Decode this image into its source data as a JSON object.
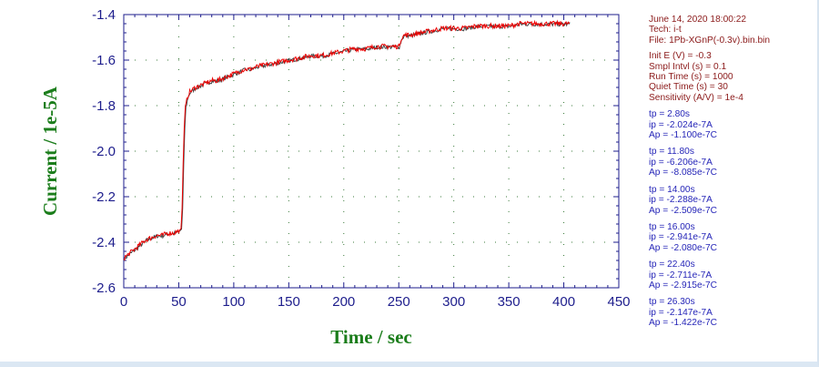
{
  "info": {
    "date_time": "June 14, 2020   18:00:22",
    "tech": "Tech: i-t",
    "file": "File: 1Pb-XGnP(-0.3v).bin.bin",
    "params": [
      "Init E (V) = -0.3",
      "Smpl Intvl (s) = 0.1",
      "Run Time (s) = 1000",
      "Quiet Time (s) = 30",
      "Sensitivity (A/V) = 1e-4"
    ],
    "peaks": [
      {
        "tp": "tp = 2.80s",
        "ip": "ip = -2.024e-7A",
        "ap": "Ap = -1.100e-7C"
      },
      {
        "tp": "tp = 11.80s",
        "ip": "ip = -6.206e-7A",
        "ap": "Ap = -8.085e-7C"
      },
      {
        "tp": "tp = 14.00s",
        "ip": "ip = -2.288e-7A",
        "ap": "Ap = -2.509e-7C"
      },
      {
        "tp": "tp = 16.00s",
        "ip": "ip = -2.941e-7A",
        "ap": "Ap = -2.080e-7C"
      },
      {
        "tp": "tp = 22.40s",
        "ip": "ip = -2.711e-7A",
        "ap": "Ap = -2.915e-7C"
      },
      {
        "tp": "tp = 26.30s",
        "ip": "ip = -2.147e-7A",
        "ap": "Ap = -1.422e-7C"
      }
    ]
  },
  "colors": {
    "trace": "#ee0000",
    "trace_shadow": "#444444",
    "axis": "#1d1d8c",
    "axis_title": "#1b7d1b",
    "grid_dots": "#3a7a3a"
  },
  "chart_data": {
    "type": "line",
    "xlabel": "Time / sec",
    "ylabel": "Current / 1e-5A",
    "xlim": [
      0,
      450
    ],
    "ylim": [
      -2.6,
      -1.4
    ],
    "xticks": [
      "0",
      "50",
      "100",
      "150",
      "200",
      "250",
      "300",
      "350",
      "400",
      "450"
    ],
    "yticks": [
      "-1.4",
      "-1.6",
      "-1.8",
      "-2.0",
      "-2.2",
      "-2.4",
      "-2.6"
    ],
    "grid": "dotted",
    "series": [
      {
        "x": [
          0,
          5,
          10,
          15,
          20,
          25,
          30,
          35,
          40,
          45,
          50,
          52,
          53,
          54,
          55,
          56,
          58,
          60,
          65,
          70,
          75,
          80,
          85,
          90,
          95,
          100,
          105,
          110,
          115,
          120,
          130,
          140,
          150,
          160,
          170,
          180,
          190,
          200,
          210,
          220,
          230,
          240,
          250,
          252,
          253,
          255,
          260,
          270,
          280,
          290,
          300,
          310,
          320,
          330,
          340,
          350,
          360,
          370,
          380,
          390,
          400,
          405
        ],
        "y": [
          -2.47,
          -2.45,
          -2.43,
          -2.41,
          -2.39,
          -2.38,
          -2.37,
          -2.37,
          -2.36,
          -2.36,
          -2.35,
          -2.34,
          -2.25,
          -2.05,
          -1.9,
          -1.81,
          -1.76,
          -1.74,
          -1.72,
          -1.71,
          -1.7,
          -1.69,
          -1.69,
          -1.68,
          -1.67,
          -1.66,
          -1.65,
          -1.64,
          -1.64,
          -1.63,
          -1.62,
          -1.61,
          -1.6,
          -1.59,
          -1.58,
          -1.58,
          -1.57,
          -1.56,
          -1.55,
          -1.55,
          -1.54,
          -1.54,
          -1.54,
          -1.51,
          -1.5,
          -1.49,
          -1.49,
          -1.48,
          -1.47,
          -1.46,
          -1.46,
          -1.46,
          -1.45,
          -1.45,
          -1.45,
          -1.45,
          -1.44,
          -1.44,
          -1.44,
          -1.44,
          -1.44,
          -1.44
        ]
      }
    ]
  }
}
